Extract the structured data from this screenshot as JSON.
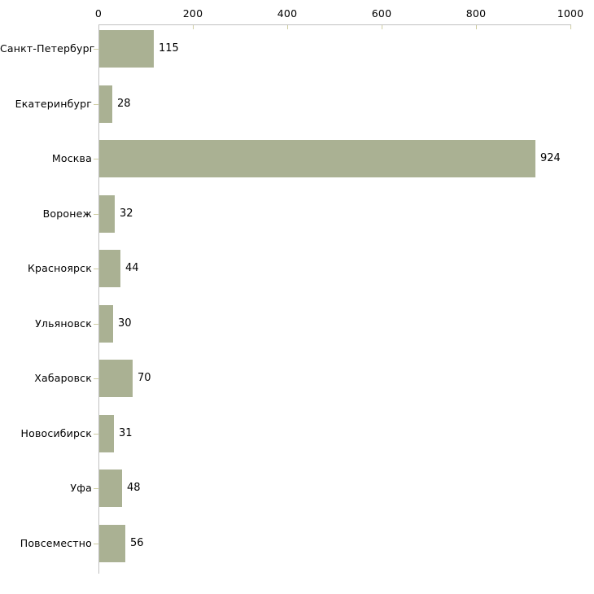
{
  "chart_data": {
    "type": "bar",
    "orientation": "horizontal",
    "title": "",
    "xlabel": "",
    "ylabel": "",
    "categories": [
      "Санкт-Петербург",
      "Екатеринбург",
      "Москва",
      "Воронеж",
      "Красноярск",
      "Ульяновск",
      "Хабаровск",
      "Новосибирск",
      "Уфа",
      "Повсеместно"
    ],
    "values": [
      115,
      28,
      924,
      32,
      44,
      30,
      70,
      31,
      48,
      56
    ],
    "value_labels": [
      "115",
      "28",
      "924",
      "32",
      "44",
      "30",
      "70",
      "31",
      "48",
      "56"
    ],
    "xlim": [
      0,
      1000
    ],
    "x_ticks": [
      0,
      200,
      400,
      600,
      800,
      1000
    ],
    "x_tick_labels": [
      "0",
      "200",
      "400",
      "600",
      "800",
      "1000"
    ],
    "axis_position": "top",
    "grid": false,
    "legend": false,
    "colors": {
      "bar_fill": "#aab193",
      "axis_line": "#c1c1c1",
      "tick_mark": "#cfcda2",
      "text": "#000000",
      "background": "#ffffff"
    }
  }
}
